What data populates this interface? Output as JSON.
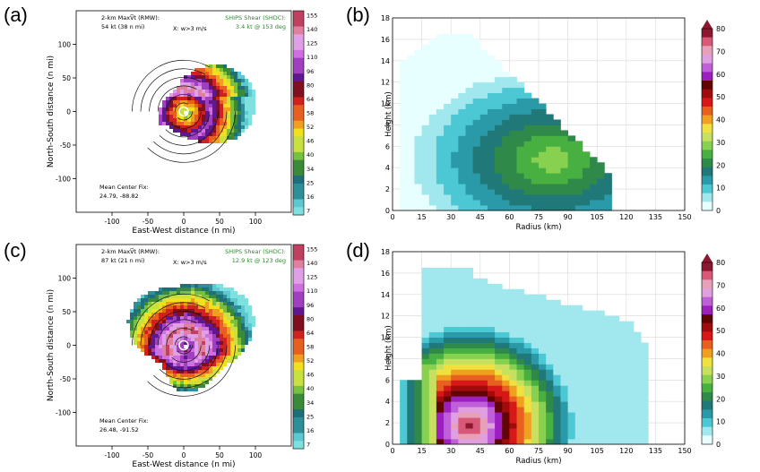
{
  "chart_data": [
    {
      "type": "heatmap",
      "panel_label": "(a)",
      "xlabel": "East-West distance (n mi)",
      "ylabel": "North-South distance (n mi)",
      "xticks": [
        -100,
        -50,
        0,
        50,
        100
      ],
      "yticks": [
        100,
        50,
        0,
        -50,
        -100
      ],
      "xlim": [
        -150,
        150
      ],
      "ylim": [
        -150,
        150
      ],
      "annot_max_line1": "2-km MaxV̅t (RMW):",
      "annot_max_line2": "54 kt (38 n mi)",
      "annot_x": "X: w>3 m/s",
      "annot_shear_line1": "SHIPS Shear (SHDC):",
      "annot_shear_line2": "3.4 kt @ 153 deg",
      "annot_center_line1": "Mean Center Fix:",
      "annot_center_line2": "24.79, -88.82",
      "colorbar_ticks": [
        "155",
        "140",
        "125",
        "110",
        "96",
        "80",
        "64",
        "58",
        "52",
        "46",
        "40",
        "34",
        "25",
        "16",
        "7"
      ]
    },
    {
      "type": "heatmap",
      "panel_label": "(b)",
      "xlabel": "Radius (km)",
      "ylabel": "Height (km)",
      "xticks": [
        0,
        15,
        30,
        45,
        60,
        75,
        90,
        105,
        120,
        135,
        150
      ],
      "yticks": [
        0,
        2,
        4,
        6,
        8,
        10,
        12,
        14,
        16,
        18
      ],
      "xlim": [
        0,
        150
      ],
      "ylim": [
        0,
        18
      ],
      "colorbar_ticks": [
        "80",
        "70",
        "60",
        "50",
        "40",
        "30",
        "20",
        "10",
        "0"
      ],
      "core": {
        "r": 80,
        "z": 4.5,
        "value": 30
      }
    },
    {
      "type": "heatmap",
      "panel_label": "(c)",
      "xlabel": "East-West distance (n mi)",
      "ylabel": "North-South distance (n mi)",
      "xticks": [
        -100,
        -50,
        0,
        50,
        100
      ],
      "yticks": [
        100,
        50,
        0,
        -50,
        -100
      ],
      "xlim": [
        -150,
        150
      ],
      "ylim": [
        -150,
        150
      ],
      "annot_max_line1": "2-km MaxV̅t (RMW):",
      "annot_max_line2": "87 kt (21 n mi)",
      "annot_x": "X: w>3 m/s",
      "annot_shear_line1": "SHIPS Shear (SHDC):",
      "annot_shear_line2": "12.9 kt @ 123 deg",
      "annot_center_line1": "Mean Center Fix:",
      "annot_center_line2": "26.48, -91.52",
      "colorbar_ticks": [
        "155",
        "140",
        "125",
        "110",
        "96",
        "80",
        "64",
        "58",
        "52",
        "46",
        "40",
        "34",
        "25",
        "16",
        "7"
      ]
    },
    {
      "type": "heatmap",
      "panel_label": "(d)",
      "xlabel": "Radius (km)",
      "ylabel": "Height (km)",
      "xticks": [
        0,
        15,
        30,
        45,
        60,
        75,
        90,
        105,
        120,
        135,
        150
      ],
      "yticks": [
        0,
        2,
        4,
        6,
        8,
        10,
        12,
        14,
        16,
        18
      ],
      "xlim": [
        0,
        150
      ],
      "ylim": [
        0,
        18
      ],
      "colorbar_ticks": [
        "80",
        "70",
        "60",
        "50",
        "40",
        "30",
        "20",
        "10",
        "0"
      ],
      "core": {
        "r": 38,
        "z": 1.5,
        "value": 80
      }
    }
  ],
  "colors": {
    "shear_text": "#2a8a2a",
    "vel_scale": [
      "#7fe0e0",
      "#5cc8d0",
      "#2f8f99",
      "#1f6f78",
      "#3a8a3a",
      "#78c040",
      "#c8e040",
      "#f0e020",
      "#f0a020",
      "#e86020",
      "#d02020",
      "#801020",
      "#601890",
      "#a040c0",
      "#d070e0",
      "#e0a0e8",
      "#e080a0",
      "#c04060"
    ],
    "vert_scale": [
      "#e8ffff",
      "#a0e8ee",
      "#4cc8d4",
      "#2a9aa8",
      "#207878",
      "#2f8a4a",
      "#48b040",
      "#88d050",
      "#c8e060",
      "#f0e040",
      "#f0a020",
      "#e86020",
      "#d81818",
      "#a00c0c",
      "#600404",
      "#9c20c0",
      "#c060d8",
      "#e0a0e0",
      "#e8a0b8",
      "#d85878",
      "#8c1830"
    ]
  }
}
